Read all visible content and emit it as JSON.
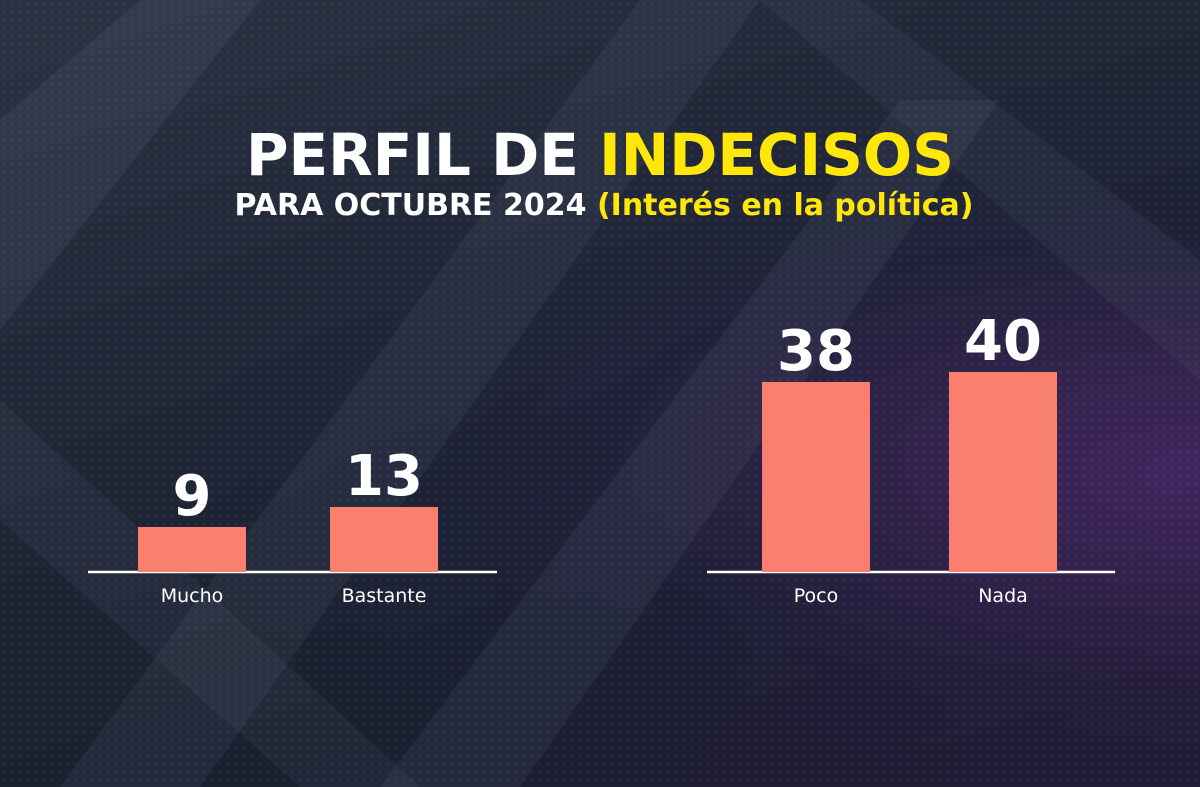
{
  "chart_data": {
    "type": "bar",
    "title": "PERFIL DE",
    "title_highlight": "INDECISOS",
    "subtitle": "PARA OCTUBRE 2024",
    "subtitle_highlight": "(Interés en la política)",
    "color": "#f9806f",
    "groups": [
      {
        "categories": [
          "Mucho",
          "Bastante"
        ],
        "values": [
          9,
          13
        ]
      },
      {
        "categories": [
          "Poco",
          "Nada"
        ],
        "values": [
          38,
          40
        ]
      }
    ]
  }
}
